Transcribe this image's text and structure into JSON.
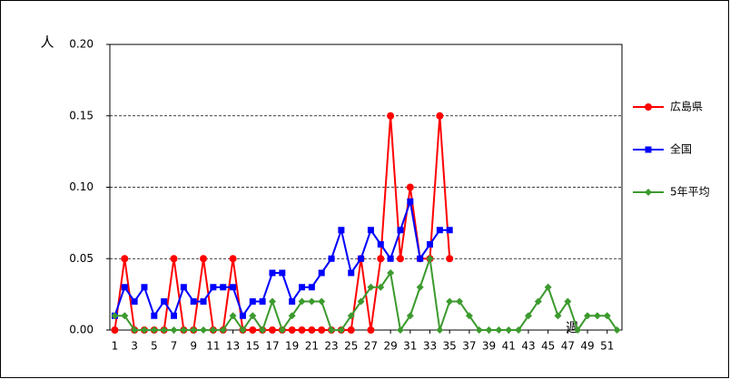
{
  "chart_data": {
    "type": "line",
    "y_label": "人",
    "x_label": "週",
    "x": [
      1,
      2,
      3,
      4,
      5,
      6,
      7,
      8,
      9,
      10,
      11,
      12,
      13,
      14,
      15,
      16,
      17,
      18,
      19,
      20,
      21,
      22,
      23,
      24,
      25,
      26,
      27,
      28,
      29,
      30,
      31,
      32,
      33,
      34,
      35,
      36,
      37,
      38,
      39,
      40,
      41,
      42,
      43,
      44,
      45,
      46,
      47,
      48,
      49,
      50,
      51,
      52
    ],
    "xlim": [
      0.5,
      52.5
    ],
    "xticks": [
      1,
      3,
      5,
      7,
      9,
      11,
      13,
      15,
      17,
      19,
      21,
      23,
      25,
      27,
      29,
      31,
      33,
      35,
      37,
      39,
      41,
      43,
      45,
      47,
      49,
      51
    ],
    "ylim": [
      0,
      0.2
    ],
    "yticks": [
      {
        "value": 0,
        "label": "0.00"
      },
      {
        "value": 0.05,
        "label": "0.05"
      },
      {
        "value": 0.1,
        "label": "0.10"
      },
      {
        "value": 0.15,
        "label": "0.15"
      },
      {
        "value": 0.2,
        "label": "0.20"
      }
    ],
    "grid": true,
    "legend": "right",
    "series": [
      {
        "name": "広島県",
        "color": "#ff0000",
        "marker": "circle",
        "values": [
          0,
          0.05,
          0,
          0,
          0,
          0,
          0.05,
          0,
          0,
          0.05,
          0,
          0,
          0.05,
          0,
          0,
          0,
          0,
          0,
          0,
          0,
          0,
          0,
          0,
          0,
          0,
          0.05,
          0,
          0.05,
          0.15,
          0.05,
          0.1,
          0.05,
          0.05,
          0.15,
          0.05,
          null,
          null,
          null,
          null,
          null,
          null,
          null,
          null,
          null,
          null,
          null,
          null,
          null,
          null,
          null,
          null,
          null
        ]
      },
      {
        "name": "全国",
        "color": "#0000ff",
        "marker": "square",
        "values": [
          0.01,
          0.03,
          0.02,
          0.03,
          0.01,
          0.02,
          0.01,
          0.03,
          0.02,
          0.02,
          0.03,
          0.03,
          0.03,
          0.01,
          0.02,
          0.02,
          0.04,
          0.04,
          0.02,
          0.03,
          0.03,
          0.04,
          0.05,
          0.07,
          0.04,
          0.05,
          0.07,
          0.06,
          0.05,
          0.07,
          0.09,
          0.05,
          0.06,
          0.07,
          0.07,
          null,
          null,
          null,
          null,
          null,
          null,
          null,
          null,
          null,
          null,
          null,
          null,
          null,
          null,
          null,
          null,
          null
        ]
      },
      {
        "name": "5年平均",
        "color": "#3c9a2e",
        "marker": "diamond",
        "values": [
          0.01,
          0.01,
          0,
          0,
          0,
          0,
          0,
          0,
          0,
          0,
          0,
          0,
          0.01,
          0,
          0.01,
          0,
          0.02,
          0,
          0.01,
          0.02,
          0.02,
          0.02,
          0,
          0,
          0.01,
          0.02,
          0.03,
          0.03,
          0.04,
          0,
          0.01,
          0.03,
          0.05,
          0,
          0.02,
          0.02,
          0.01,
          0,
          0,
          0,
          0,
          0,
          0.01,
          0.02,
          0.03,
          0.01,
          0.02,
          0,
          0.01,
          0.01,
          0.01,
          0
        ]
      }
    ]
  }
}
